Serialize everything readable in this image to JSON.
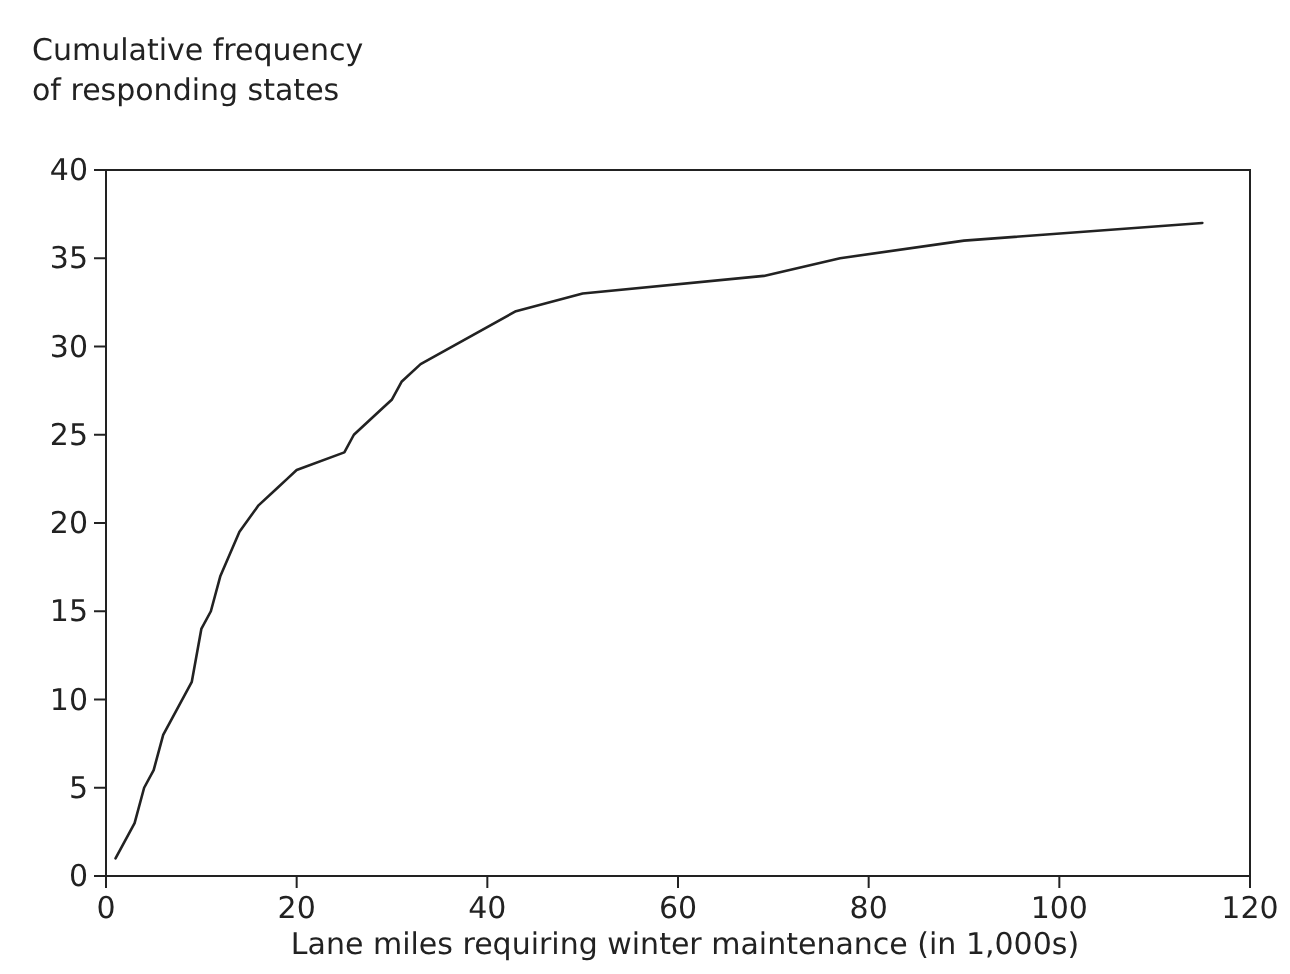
{
  "chart_data": {
    "type": "line",
    "ylabel": "Cumulative frequency\nof responding states",
    "xlabel": "Lane miles requiring winter maintenance (in 1,000s)",
    "xlim": [
      0,
      120
    ],
    "xticks": [
      0,
      20,
      40,
      60,
      80,
      100,
      120
    ],
    "ylim": [
      0,
      40
    ],
    "yticks": [
      0,
      5,
      10,
      15,
      20,
      25,
      30,
      35,
      40
    ],
    "series": [
      {
        "color": "#222222",
        "x": [
          1,
          3,
          4,
          5,
          6,
          9,
          10,
          11,
          12,
          14,
          16,
          18,
          19,
          20,
          25,
          26,
          29,
          30,
          31,
          33,
          43,
          50,
          69,
          77,
          90,
          115
        ],
        "values": [
          1,
          3,
          5,
          6,
          8,
          11,
          14,
          15,
          17,
          19.5,
          21,
          22,
          22.5,
          23,
          24,
          25,
          26.5,
          27,
          28,
          29,
          32,
          33,
          34,
          35,
          36,
          37
        ]
      }
    ],
    "grid": false,
    "marker": "none",
    "line_style": "solid"
  }
}
